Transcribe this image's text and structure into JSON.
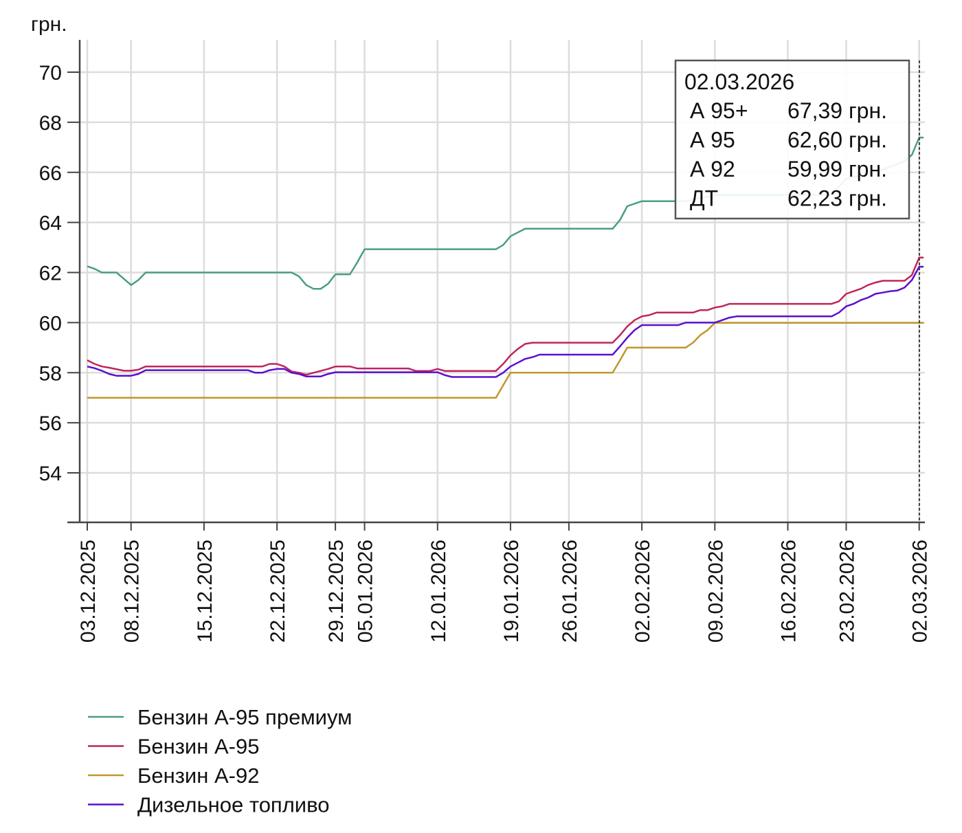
{
  "chart_data": {
    "type": "line",
    "ylabel": "грн.",
    "ylim": [
      52,
      71.3
    ],
    "yticks": [
      54,
      56,
      58,
      60,
      62,
      64,
      66,
      68,
      70
    ],
    "ytick_labels": [
      "54",
      "56",
      "58",
      "60",
      "62",
      "64",
      "66",
      "68",
      "70"
    ],
    "x_units": "trading-day index (0 = 03.12.2025, 114 = 02.03.2026)",
    "xlim": [
      -1,
      114.6
    ],
    "xticks": [
      {
        "index": 0,
        "label": "03.12.2025"
      },
      {
        "index": 6,
        "label": "08.12.2025"
      },
      {
        "index": 16,
        "label": "15.12.2025"
      },
      {
        "index": 26,
        "label": "22.12.2025"
      },
      {
        "index": 34,
        "label": "29.12.2025"
      },
      {
        "index": 38,
        "label": "05.01.2026"
      },
      {
        "index": 48,
        "label": "12.01.2026"
      },
      {
        "index": 58,
        "label": "19.01.2026"
      },
      {
        "index": 66,
        "label": "26.01.2026"
      },
      {
        "index": 76,
        "label": "02.02.2026"
      },
      {
        "index": 86,
        "label": "09.02.2026"
      },
      {
        "index": 96,
        "label": "16.02.2026"
      },
      {
        "index": 104,
        "label": "23.02.2026"
      },
      {
        "index": 114,
        "label": "02.03.2026"
      }
    ],
    "grid": true,
    "legend_position": "bottom-left",
    "series": [
      {
        "name": "Бензин А-95 премиум",
        "color": "#4a9e80",
        "points": [
          [
            0,
            62.25
          ],
          [
            1,
            62.15
          ],
          [
            2,
            62.0
          ],
          [
            4,
            62.0
          ],
          [
            5,
            61.75
          ],
          [
            6,
            61.5
          ],
          [
            7,
            61.7
          ],
          [
            8,
            62.0
          ],
          [
            28,
            62.0
          ],
          [
            29,
            61.85
          ],
          [
            30,
            61.5
          ],
          [
            31,
            61.35
          ],
          [
            32,
            61.35
          ],
          [
            33,
            61.55
          ],
          [
            34,
            61.93
          ],
          [
            36,
            61.93
          ],
          [
            37,
            62.4
          ],
          [
            38,
            62.93
          ],
          [
            56,
            62.93
          ],
          [
            57,
            63.1
          ],
          [
            58,
            63.45
          ],
          [
            59,
            63.6
          ],
          [
            60,
            63.75
          ],
          [
            72,
            63.75
          ],
          [
            73,
            64.1
          ],
          [
            74,
            64.65
          ],
          [
            76,
            64.85
          ],
          [
            82,
            64.85
          ],
          [
            86,
            65.1
          ],
          [
            102,
            65.1
          ],
          [
            104,
            65.75
          ],
          [
            108,
            66.0
          ],
          [
            112,
            66.45
          ],
          [
            113,
            66.7
          ],
          [
            114,
            67.39
          ],
          [
            114.6,
            67.39
          ]
        ]
      },
      {
        "name": "Бензин А-95",
        "color": "#c0245c",
        "points": [
          [
            0,
            58.5
          ],
          [
            1,
            58.35
          ],
          [
            2,
            58.25
          ],
          [
            3,
            58.2
          ],
          [
            5,
            58.08
          ],
          [
            6,
            58.08
          ],
          [
            7,
            58.12
          ],
          [
            8,
            58.25
          ],
          [
            24,
            58.25
          ],
          [
            25,
            58.35
          ],
          [
            26,
            58.35
          ],
          [
            27,
            58.25
          ],
          [
            28,
            58.05
          ],
          [
            29,
            58.0
          ],
          [
            30,
            57.92
          ],
          [
            33,
            58.15
          ],
          [
            34,
            58.25
          ],
          [
            36,
            58.25
          ],
          [
            37,
            58.17
          ],
          [
            44,
            58.17
          ],
          [
            45,
            58.07
          ],
          [
            47,
            58.07
          ],
          [
            48,
            58.15
          ],
          [
            49,
            58.07
          ],
          [
            56,
            58.07
          ],
          [
            57,
            58.35
          ],
          [
            58,
            58.7
          ],
          [
            59,
            58.95
          ],
          [
            60,
            59.15
          ],
          [
            61,
            59.2
          ],
          [
            72,
            59.2
          ],
          [
            73,
            59.5
          ],
          [
            74,
            59.85
          ],
          [
            75,
            60.1
          ],
          [
            76,
            60.25
          ],
          [
            77,
            60.3
          ],
          [
            78,
            60.4
          ],
          [
            83,
            60.4
          ],
          [
            84,
            60.5
          ],
          [
            85,
            60.5
          ],
          [
            86,
            60.6
          ],
          [
            87,
            60.65
          ],
          [
            88,
            60.75
          ],
          [
            102,
            60.75
          ],
          [
            103,
            60.85
          ],
          [
            104,
            61.15
          ],
          [
            105,
            61.25
          ],
          [
            106,
            61.35
          ],
          [
            107,
            61.5
          ],
          [
            108,
            61.6
          ],
          [
            109,
            61.67
          ],
          [
            112,
            61.67
          ],
          [
            113,
            61.9
          ],
          [
            114,
            62.6
          ],
          [
            114.6,
            62.6
          ]
        ]
      },
      {
        "name": "Бензин А-92",
        "color": "#c0972c",
        "points": [
          [
            0,
            57.0
          ],
          [
            56,
            57.0
          ],
          [
            57,
            57.5
          ],
          [
            58,
            58.0
          ],
          [
            72,
            58.0
          ],
          [
            73,
            58.5
          ],
          [
            74,
            59.0
          ],
          [
            82,
            59.0
          ],
          [
            83,
            59.2
          ],
          [
            84,
            59.5
          ],
          [
            85,
            59.7
          ],
          [
            86,
            59.99
          ],
          [
            114,
            59.99
          ],
          [
            114.6,
            59.99
          ]
        ]
      },
      {
        "name": "Дизельное топливо",
        "color": "#5a0fd0",
        "points": [
          [
            0,
            58.25
          ],
          [
            1,
            58.18
          ],
          [
            2,
            58.08
          ],
          [
            3,
            57.95
          ],
          [
            4,
            57.88
          ],
          [
            6,
            57.88
          ],
          [
            7,
            57.95
          ],
          [
            8,
            58.1
          ],
          [
            22,
            58.1
          ],
          [
            23,
            58.0
          ],
          [
            24,
            58.0
          ],
          [
            25,
            58.1
          ],
          [
            26,
            58.15
          ],
          [
            27,
            58.15
          ],
          [
            28,
            58.0
          ],
          [
            29,
            57.95
          ],
          [
            30,
            57.85
          ],
          [
            32,
            57.85
          ],
          [
            33,
            57.95
          ],
          [
            34,
            58.02
          ],
          [
            48,
            58.02
          ],
          [
            49,
            57.9
          ],
          [
            50,
            57.83
          ],
          [
            56,
            57.83
          ],
          [
            57,
            58.0
          ],
          [
            58,
            58.25
          ],
          [
            59,
            58.4
          ],
          [
            60,
            58.55
          ],
          [
            61,
            58.62
          ],
          [
            62,
            58.72
          ],
          [
            72,
            58.72
          ],
          [
            73,
            59.05
          ],
          [
            74,
            59.4
          ],
          [
            75,
            59.7
          ],
          [
            76,
            59.9
          ],
          [
            81,
            59.9
          ],
          [
            82,
            60.0
          ],
          [
            86,
            60.0
          ],
          [
            87,
            60.1
          ],
          [
            88,
            60.2
          ],
          [
            89,
            60.25
          ],
          [
            102,
            60.25
          ],
          [
            103,
            60.4
          ],
          [
            104,
            60.65
          ],
          [
            105,
            60.75
          ],
          [
            106,
            60.9
          ],
          [
            107,
            61.0
          ],
          [
            108,
            61.15
          ],
          [
            109,
            61.2
          ],
          [
            110,
            61.25
          ],
          [
            111,
            61.28
          ],
          [
            112,
            61.4
          ],
          [
            113,
            61.7
          ],
          [
            114,
            62.23
          ],
          [
            114.6,
            62.23
          ]
        ]
      }
    ],
    "tooltip": {
      "date": "02.03.2026",
      "rows": [
        {
          "label": "А 95+",
          "value": "67,39 грн."
        },
        {
          "label": "А 95",
          "value": "62,60 грн."
        },
        {
          "label": "А 92",
          "value": "59,99 грн."
        },
        {
          "label": "ДТ",
          "value": "62,23 грн."
        }
      ]
    }
  }
}
